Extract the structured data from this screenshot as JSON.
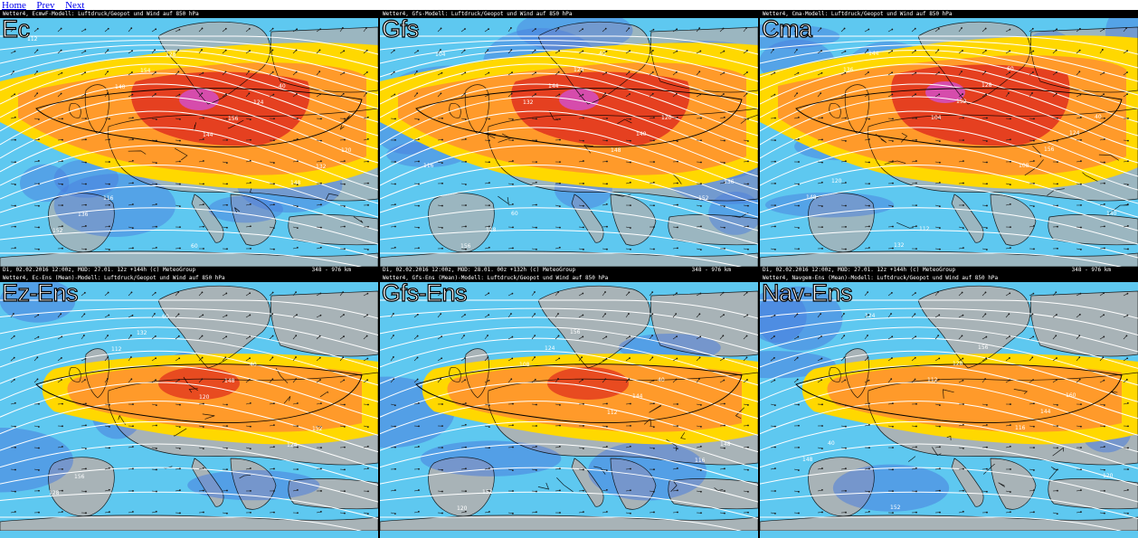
{
  "nav": {
    "home": "Home",
    "prev": "Prev",
    "next": "Next"
  },
  "panels": [
    {
      "title": "Ec",
      "header": "Wetter4, EcmwF-Modell: Luftdruck/Geopot und Wind auf 850 hPa",
      "footer": "Di, 02.02.2016 12:00z, MOD: 27.01. 12z +144h (c) MeteoGroup",
      "scale": "348 - 976 km",
      "type": "deterministic",
      "labels": [
        "112",
        "140",
        "144",
        "148",
        "152",
        "154",
        "156",
        "132",
        "136",
        "128",
        "124",
        "120",
        "116",
        "60",
        "40"
      ]
    },
    {
      "title": "Gfs",
      "header": "Wetter4, Gfs-Modell: Luftdruck/Geopot und Wind auf 850 hPa",
      "footer": "Di, 02.02.2016 12:00z, MOD: 28.01. 00z +132h (c) MeteoGroup",
      "scale": "348 - 976 km",
      "type": "deterministic",
      "labels": [
        "104",
        "132",
        "148",
        "152",
        "156",
        "144",
        "140",
        "136",
        "128",
        "124",
        "120",
        "116",
        "60",
        "40"
      ]
    },
    {
      "title": "Cma",
      "header": "Wetter4, Cma-Modell: Luftdruck/Geopot und Wind auf 850 hPa",
      "footer": "Di, 02.02.2016 12:00z, MOD: 27.01. 12z +144h (c) MeteoGroup",
      "scale": "348 - 976 km",
      "type": "deterministic",
      "labels": [
        "136",
        "104",
        "108",
        "140",
        "144",
        "152",
        "156",
        "148",
        "132",
        "128",
        "124",
        "120",
        "112",
        "60",
        "40"
      ]
    },
    {
      "title": "Ez-Ens",
      "header": "Wetter4, Ec-Ens (Mean)-Modell: Luftdruck/Geopot und Wind auf 850 hPa",
      "footer": "",
      "scale": "",
      "type": "ensemble",
      "labels": [
        "112",
        "120",
        "124",
        "128",
        "132",
        "148",
        "152",
        "156",
        "60",
        "40"
      ]
    },
    {
      "title": "Gfs-Ens",
      "header": "Wetter4, Gfs-Ens (Mean)-Modell: Luftdruck/Geopot und Wind auf 850 hPa",
      "footer": "",
      "scale": "",
      "type": "ensemble",
      "labels": [
        "108",
        "112",
        "116",
        "120",
        "124",
        "144",
        "148",
        "152",
        "156",
        "40"
      ]
    },
    {
      "title": "Nav-Ens",
      "header": "Wetter4, Navgem-Ens (Mean)-Modell: Luftdruck/Geopot und Wind auf 850 hPa",
      "footer": "",
      "scale": "",
      "type": "ensemble",
      "labels": [
        "112",
        "116",
        "120",
        "124",
        "128",
        "144",
        "148",
        "152",
        "156",
        "160",
        "40"
      ]
    }
  ],
  "colors": {
    "sea": "#5ec8f0",
    "land": "#b0b0b0",
    "blue": "#4a7dde",
    "yellow": "#ffd800",
    "orange": "#ff9a2a",
    "red": "#e0301e",
    "magenta": "#d24fd0",
    "isobar": "#ffffff",
    "coast": "#000000"
  }
}
